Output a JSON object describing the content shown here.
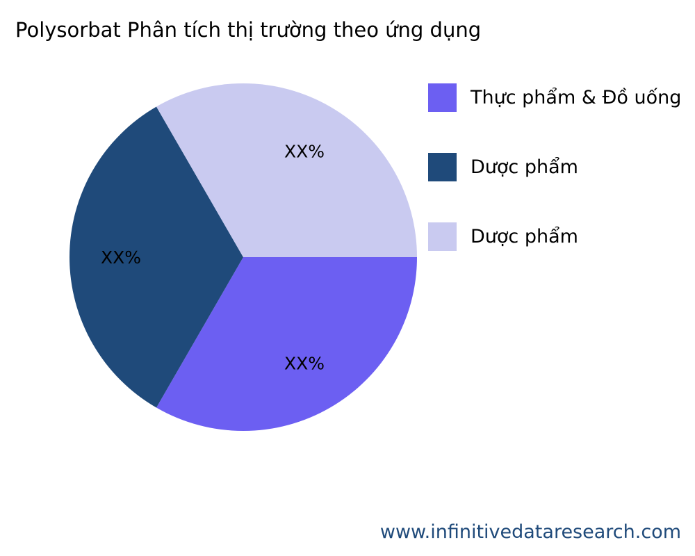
{
  "chart_data": {
    "type": "pie",
    "title": "Polysorbat Phân tích thị trường theo ứng dụng",
    "slices": [
      {
        "name": "Thực phẩm & Đồ uống",
        "value": 33.33,
        "label": "XX%",
        "color": "#6c5ff2"
      },
      {
        "name": "Dược phẩm",
        "value": 33.33,
        "label": "XX%",
        "color": "#1f4a7a"
      },
      {
        "name": "Dược phẩm",
        "value": 33.33,
        "label": "XX%",
        "color": "#c9caf0"
      }
    ],
    "legend_position": "right"
  },
  "footer": {
    "url": "www.infinitivedataresearch.com"
  }
}
